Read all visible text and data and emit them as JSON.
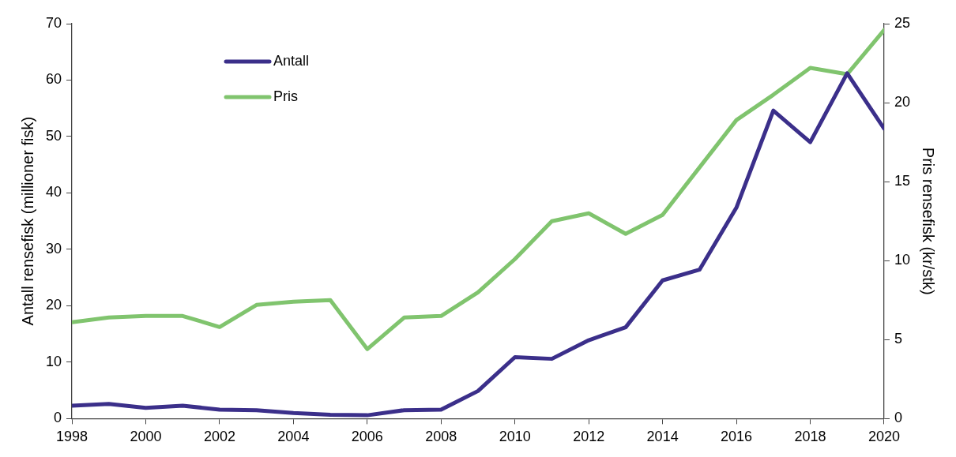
{
  "chart_data": {
    "type": "line",
    "xlabel": null,
    "ylabel": "Antall rensefisk (millioner fisk)",
    "y2label": "Pris rensefisk (kr/stk)",
    "x": [
      1998,
      1999,
      2000,
      2001,
      2002,
      2003,
      2004,
      2005,
      2006,
      2007,
      2008,
      2009,
      2010,
      2011,
      2012,
      2013,
      2014,
      2015,
      2016,
      2017,
      2018,
      2019,
      2020
    ],
    "series": [
      {
        "name": "Antall",
        "color": "#3b2f8a",
        "values": [
          2.3,
          2.6,
          1.9,
          2.3,
          1.6,
          1.5,
          1.0,
          0.7,
          0.6,
          1.5,
          1.6,
          4.9,
          10.9,
          10.6,
          13.9,
          16.2,
          24.5,
          26.4,
          37.4,
          54.6,
          49.0,
          61.2,
          51.4
        ]
      },
      {
        "name": "Pris",
        "color": "#80c46e",
        "axis": "y2",
        "values": [
          6.1,
          6.4,
          6.5,
          6.5,
          5.8,
          7.2,
          7.4,
          7.5,
          4.4,
          6.4,
          6.5,
          8.0,
          10.1,
          12.5,
          13.0,
          11.7,
          12.9,
          15.9,
          18.9,
          20.5,
          22.2,
          21.8,
          24.6
        ]
      }
    ],
    "xlim": [
      1998,
      2020
    ],
    "xticks": [
      1998,
      2000,
      2002,
      2004,
      2006,
      2008,
      2010,
      2012,
      2014,
      2016,
      2018,
      2020
    ],
    "ylim": [
      0,
      70
    ],
    "yticks": [
      0,
      10,
      20,
      30,
      40,
      50,
      60,
      70
    ],
    "y2lim": [
      0,
      25
    ],
    "y2ticks": [
      0,
      5,
      10,
      15,
      20,
      25
    ],
    "grid": false,
    "legend": "top left",
    "marker": "none",
    "line_style": "solid"
  }
}
